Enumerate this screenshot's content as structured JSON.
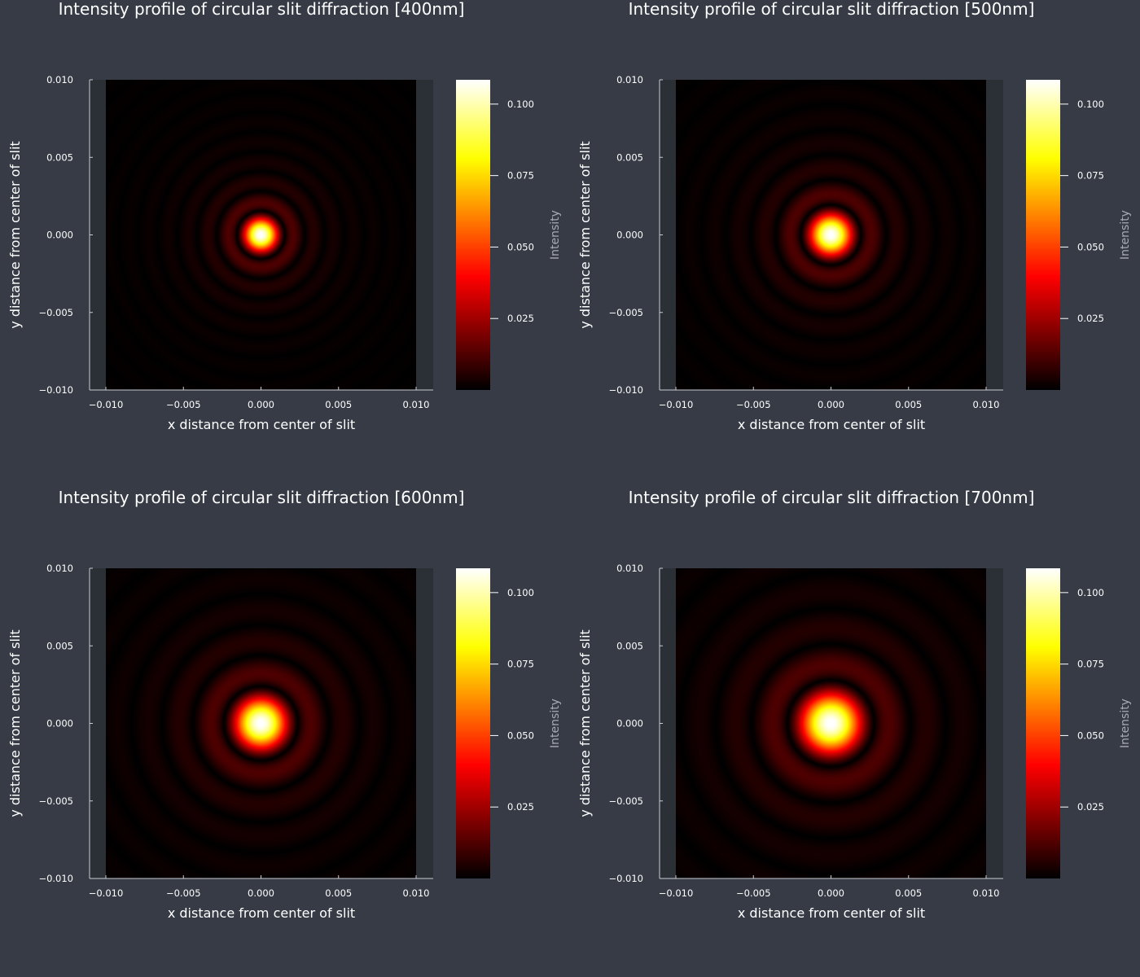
{
  "page": {
    "background": "#363b46",
    "plot_background": "#2b2f36",
    "text_color": "#ffffff",
    "colorbar_label_color": "#a8abb2",
    "colormap": "hot"
  },
  "chart_data": [
    {
      "type": "heatmap",
      "wavelength_nm": 400,
      "title": "Intensity profile of circular slit diffraction [400nm]",
      "xlabel": "x distance from center of slit",
      "ylabel": "y distance from center of slit",
      "xlim": [
        -0.01,
        0.01
      ],
      "ylim": [
        -0.01,
        0.01
      ],
      "xticks": [
        "−0.010",
        "−0.005",
        "0.000",
        "0.005",
        "0.010"
      ],
      "yticks": [
        "−0.010",
        "−0.005",
        "0.000",
        "0.005",
        "0.010"
      ],
      "tick_values": [
        -0.01,
        -0.005,
        0,
        0.005,
        0.01
      ],
      "peak_intensity": 0.11,
      "first_dark_ring_radius": 0.00155,
      "colorbar": {
        "label": "Intensity",
        "range": [
          0,
          0.1085
        ],
        "ticks": [
          "0.025",
          "0.050",
          "0.075",
          "0.100"
        ],
        "tick_values": [
          0.025,
          0.05,
          0.075,
          0.1
        ]
      }
    },
    {
      "type": "heatmap",
      "wavelength_nm": 500,
      "title": "Intensity profile of circular slit diffraction [500nm]",
      "xlabel": "x distance from center of slit",
      "ylabel": "y distance from center of slit",
      "xlim": [
        -0.01,
        0.01
      ],
      "ylim": [
        -0.01,
        0.01
      ],
      "xticks": [
        "−0.010",
        "−0.005",
        "0.000",
        "0.005",
        "0.010"
      ],
      "yticks": [
        "−0.010",
        "−0.005",
        "0.000",
        "0.005",
        "0.010"
      ],
      "tick_values": [
        -0.01,
        -0.005,
        0,
        0.005,
        0.01
      ],
      "peak_intensity": 0.11,
      "first_dark_ring_radius": 0.00195,
      "colorbar": {
        "label": "Intensity",
        "range": [
          0,
          0.1085
        ],
        "ticks": [
          "0.025",
          "0.050",
          "0.075",
          "0.100"
        ],
        "tick_values": [
          0.025,
          0.05,
          0.075,
          0.1
        ]
      }
    },
    {
      "type": "heatmap",
      "wavelength_nm": 600,
      "title": "Intensity profile of circular slit diffraction [600nm]",
      "xlabel": "x distance from center of slit",
      "ylabel": "y distance from center of slit",
      "xlim": [
        -0.01,
        0.01
      ],
      "ylim": [
        -0.01,
        0.01
      ],
      "xticks": [
        "−0.010",
        "−0.005",
        "0.000",
        "0.005",
        "0.010"
      ],
      "yticks": [
        "−0.010",
        "−0.005",
        "0.000",
        "0.005",
        "0.010"
      ],
      "tick_values": [
        -0.01,
        -0.005,
        0,
        0.005,
        0.01
      ],
      "peak_intensity": 0.11,
      "first_dark_ring_radius": 0.0024,
      "colorbar": {
        "label": "Intensity",
        "range": [
          0,
          0.1085
        ],
        "ticks": [
          "0.025",
          "0.050",
          "0.075",
          "0.100"
        ],
        "tick_values": [
          0.025,
          0.05,
          0.075,
          0.1
        ]
      }
    },
    {
      "type": "heatmap",
      "wavelength_nm": 700,
      "title": "Intensity profile of circular slit diffraction [700nm]",
      "xlabel": "x distance from center of slit",
      "ylabel": "y distance from center of slit",
      "xlim": [
        -0.01,
        0.01
      ],
      "ylim": [
        -0.01,
        0.01
      ],
      "xticks": [
        "−0.010",
        "−0.005",
        "0.000",
        "0.005",
        "0.010"
      ],
      "yticks": [
        "−0.010",
        "−0.005",
        "0.000",
        "0.005",
        "0.010"
      ],
      "tick_values": [
        -0.01,
        -0.005,
        0,
        0.005,
        0.01
      ],
      "peak_intensity": 0.11,
      "first_dark_ring_radius": 0.0028,
      "colorbar": {
        "label": "Intensity",
        "range": [
          0,
          0.1085
        ],
        "ticks": [
          "0.025",
          "0.050",
          "0.075",
          "0.100"
        ],
        "tick_values": [
          0.025,
          0.05,
          0.075,
          0.1
        ]
      }
    }
  ]
}
